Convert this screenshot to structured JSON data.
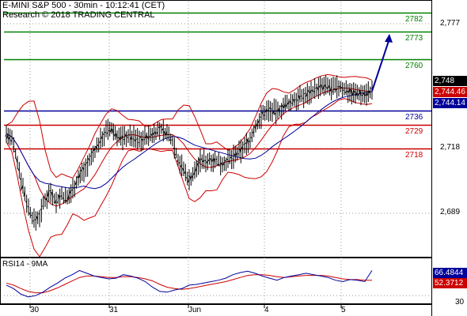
{
  "header": {
    "title": "E-MINI S&P 500 - 30min - 10:12:41 (CET)",
    "source": "Research © 2018 TRADING CENTRAL"
  },
  "chart_data": {
    "type": "line",
    "instrument": "E-MINI S&P 500",
    "timeframe": "30min",
    "x_labels": [
      "30",
      "31",
      "Jun",
      "4",
      "5"
    ],
    "price_axis": {
      "ticks": [
        "2,777",
        "2,718",
        "2,689"
      ],
      "range": [
        2675,
        2790
      ]
    },
    "levels": [
      {
        "value": 2782,
        "label": "2782",
        "color": "#008000",
        "type": "resistance"
      },
      {
        "value": 2773,
        "label": "2773",
        "color": "#008000",
        "type": "resistance"
      },
      {
        "value": 2760,
        "label": "2760",
        "color": "#008000",
        "type": "resistance"
      },
      {
        "value": 2736,
        "label": "2736",
        "color": "#000099",
        "type": "pivot"
      },
      {
        "value": 2729,
        "label": "2729",
        "color": "#cc0000",
        "type": "support"
      },
      {
        "value": 2718,
        "label": "2718",
        "color": "#cc0000",
        "type": "support"
      }
    ],
    "price_tags": [
      {
        "label": "2,748",
        "bg": "#000000",
        "fg": "#ffffff"
      },
      {
        "label": "2,744.46",
        "bg": "#cc0000",
        "fg": "#ffffff"
      },
      {
        "label": "2,744.14",
        "bg": "#000099",
        "fg": "#ffffff"
      }
    ],
    "price_series": [
      2725,
      2722,
      2712,
      2700,
      2690,
      2684,
      2686,
      2694,
      2698,
      2693,
      2696,
      2694,
      2699,
      2704,
      2708,
      2712,
      2717,
      2722,
      2726,
      2727,
      2724,
      2723,
      2724,
      2723,
      2722,
      2723,
      2724,
      2726,
      2727,
      2725,
      2722,
      2713,
      2708,
      2703,
      2707,
      2712,
      2712,
      2713,
      2712,
      2711,
      2712,
      2714,
      2716,
      2719,
      2722,
      2728,
      2733,
      2736,
      2736,
      2735,
      2738,
      2739,
      2741,
      2742,
      2743,
      2745,
      2746,
      2747,
      2747,
      2746,
      2747,
      2746,
      2745,
      2744,
      2744,
      2744,
      2745
    ],
    "forecast": {
      "start": 2745,
      "end": 2772,
      "color": "#000099"
    },
    "rsi": {
      "title": "RSI14 - 9MA",
      "ticks": [
        "30"
      ],
      "range": [
        20,
        80
      ],
      "current": "66.4844",
      "ma_current": "52.3712",
      "values": [
        45,
        40,
        32,
        28,
        30,
        35,
        42,
        48,
        55,
        60,
        66,
        62,
        58,
        56,
        54,
        55,
        60,
        58,
        55,
        50,
        42,
        36,
        35,
        38,
        40,
        45,
        46,
        48,
        50,
        52,
        55,
        60,
        63,
        65,
        62,
        58,
        55,
        52,
        56,
        58,
        60,
        62,
        60,
        58,
        56,
        52,
        50,
        53,
        52,
        50,
        66
      ],
      "ma_values": [
        48,
        45,
        40,
        36,
        34,
        34,
        37,
        41,
        46,
        51,
        56,
        58,
        58,
        57,
        56,
        56,
        57,
        57,
        56,
        54,
        51,
        46,
        42,
        40,
        39,
        40,
        42,
        44,
        46,
        48,
        50,
        53,
        56,
        59,
        60,
        60,
        59,
        57,
        56,
        57,
        58,
        59,
        59,
        59,
        58,
        56,
        54,
        53,
        53,
        52,
        52
      ]
    }
  }
}
